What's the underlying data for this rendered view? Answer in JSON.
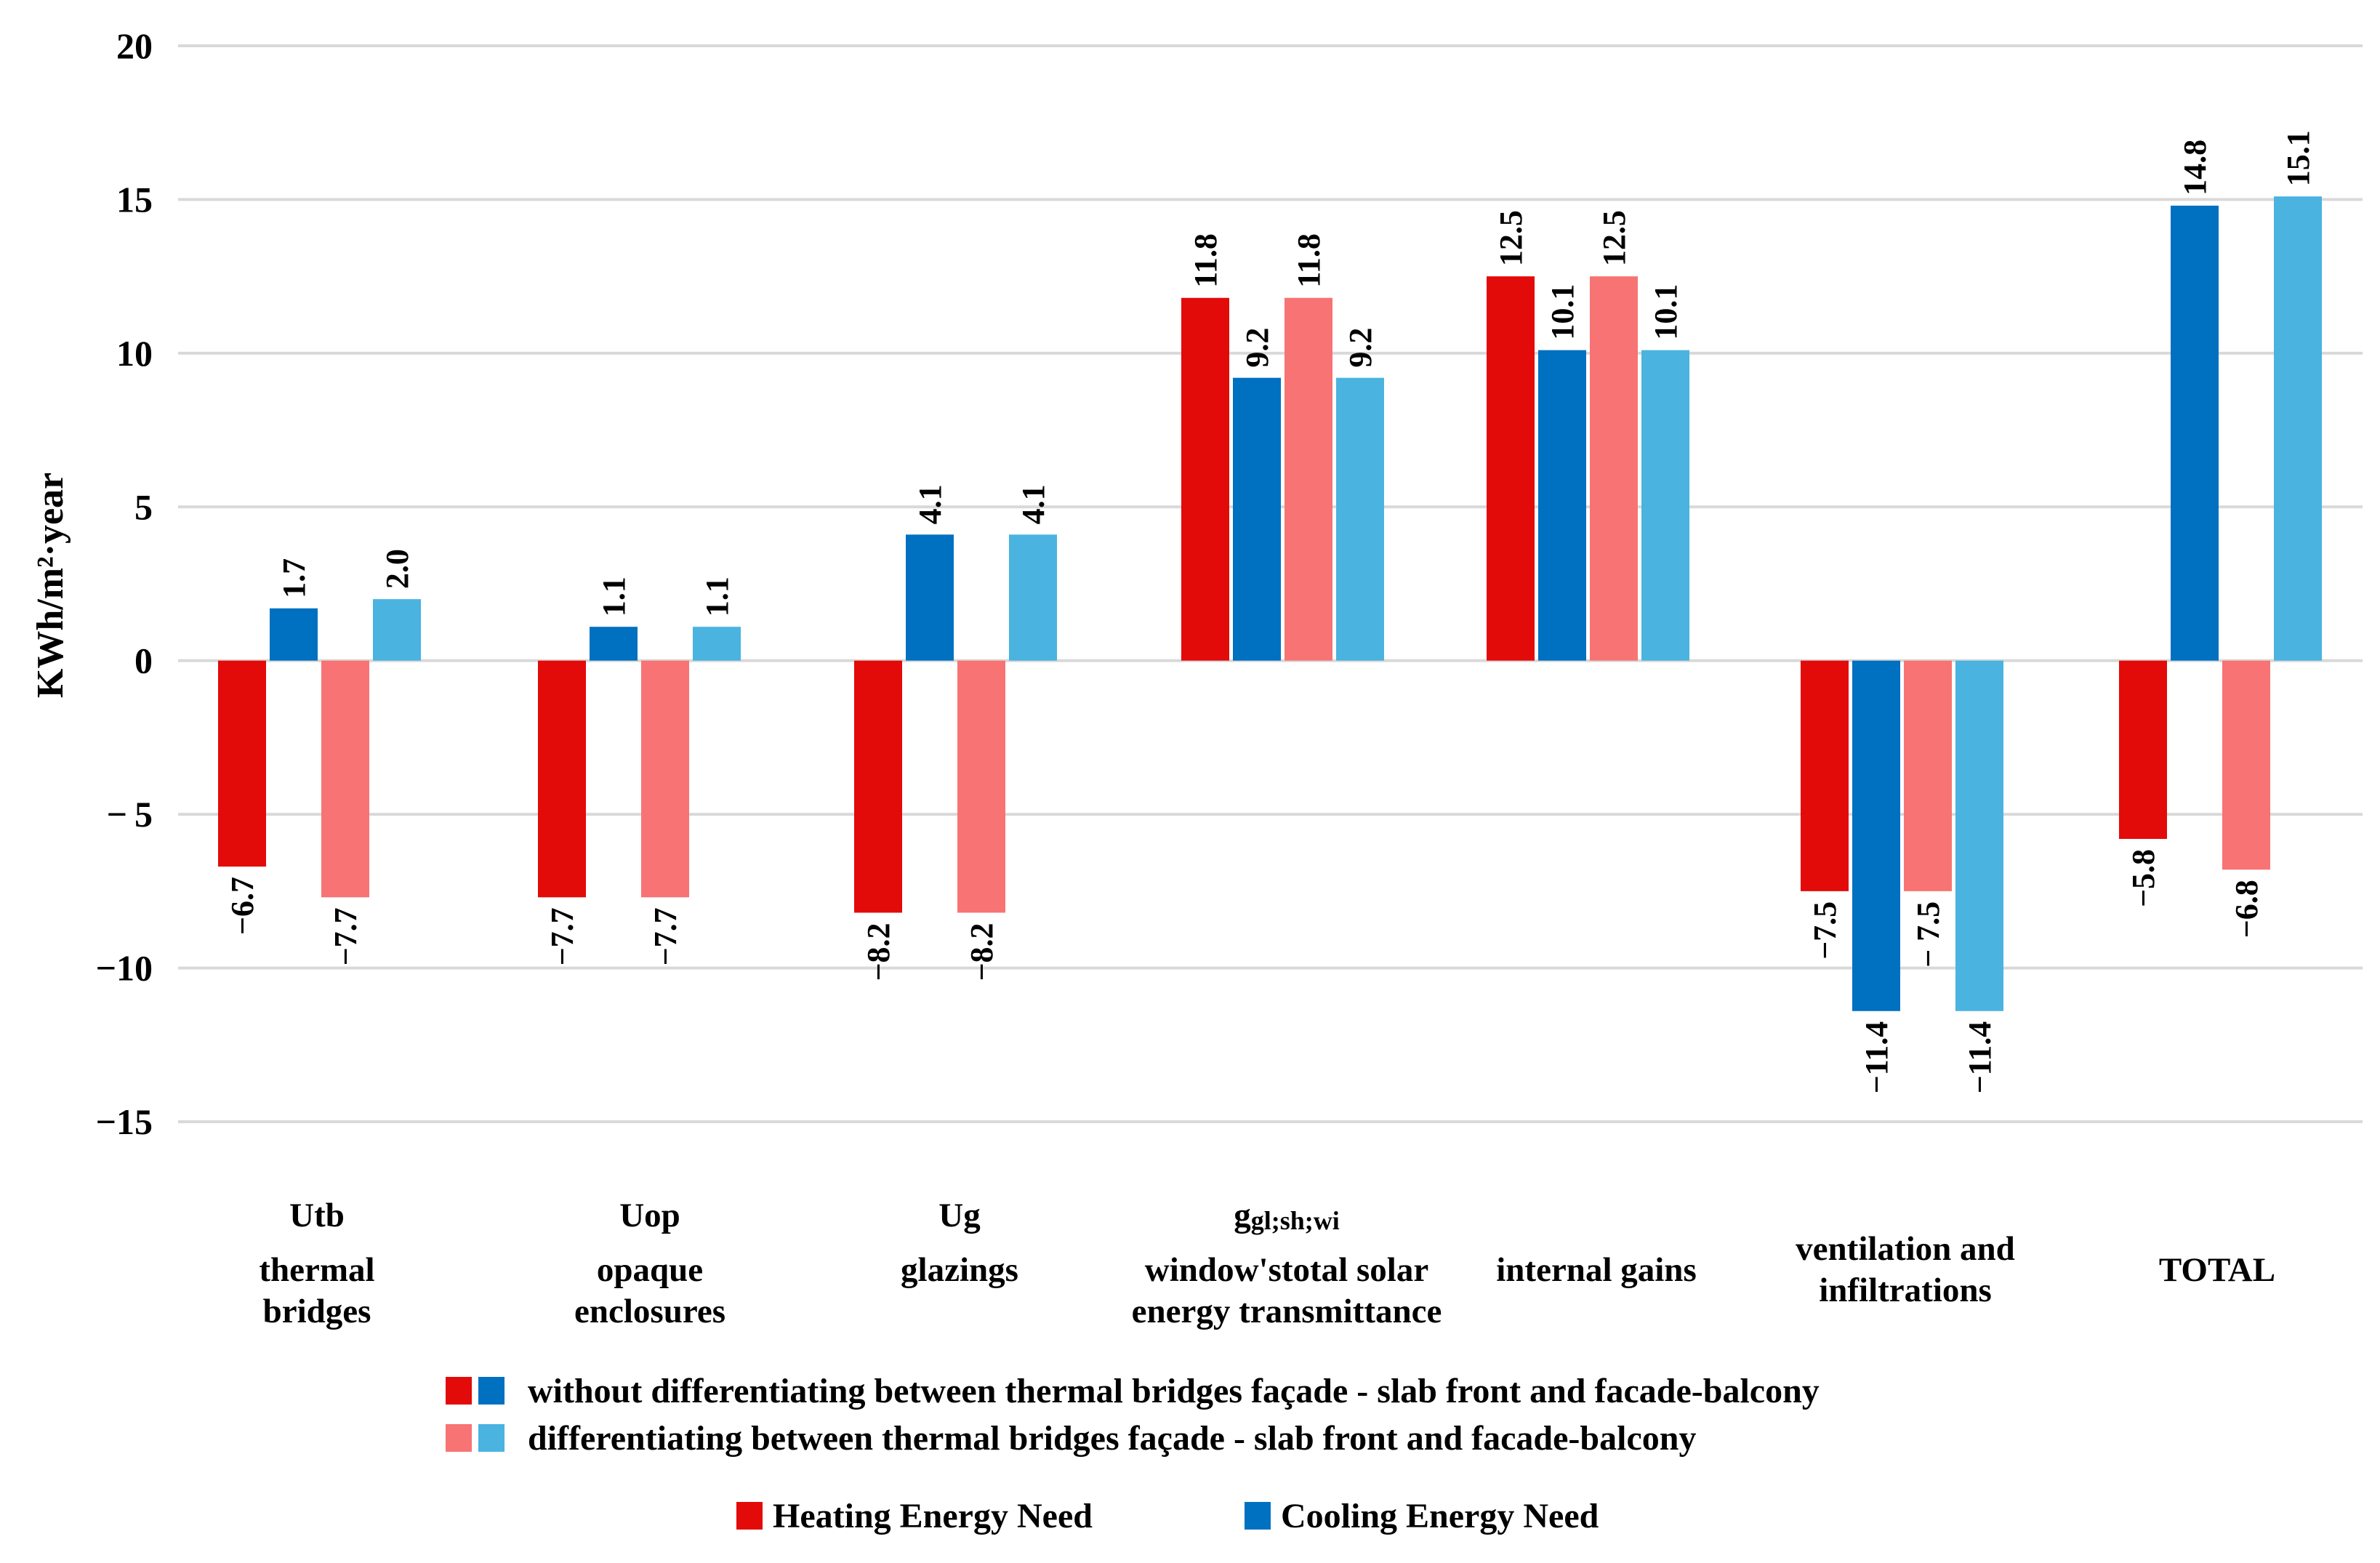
{
  "chart_data": {
    "type": "bar",
    "ylabel": "KWh/m²·year",
    "ylim": [
      -15,
      20
    ],
    "yticks": [
      20,
      15,
      10,
      5,
      0,
      -5,
      -10,
      -15
    ],
    "ytick_labels": [
      "20",
      "15",
      "10",
      "5",
      "0",
      "− 5",
      "−10",
      "−15"
    ],
    "grid": true,
    "categories": [
      {
        "symbol": "Utb",
        "symbol_sub": "",
        "description": [
          "thermal",
          "bridges"
        ]
      },
      {
        "symbol": "Uop",
        "symbol_sub": "",
        "description": [
          "opaque",
          "enclosures"
        ]
      },
      {
        "symbol": "Ug",
        "symbol_sub": "",
        "description": [
          "glazings"
        ]
      },
      {
        "symbol": "g",
        "symbol_sub": "gl;sh;wi",
        "description": [
          "window'stotal solar",
          "energy transmittance"
        ]
      },
      {
        "symbol": "",
        "symbol_sub": "",
        "description": [
          "internal gains"
        ]
      },
      {
        "symbol": "",
        "symbol_sub": "",
        "description": [
          "ventilation and",
          "infiltrations"
        ]
      },
      {
        "symbol": "",
        "symbol_sub": "",
        "description": [
          "TOTAL"
        ]
      }
    ],
    "series": [
      {
        "name": "Heating Energy Need — without differentiating",
        "color": "#e30a0a",
        "values": [
          -6.7,
          -7.7,
          -8.2,
          11.8,
          12.5,
          -7.5,
          -5.8
        ],
        "labels": [
          "−6.7",
          "−7.7",
          "−8.2",
          "11.8",
          "12.5",
          "−7.5",
          "−5.8"
        ]
      },
      {
        "name": "Cooling Energy Need — without differentiating",
        "color": "#0070c0",
        "values": [
          1.7,
          1.1,
          4.1,
          9.2,
          10.1,
          -11.4,
          14.8
        ],
        "labels": [
          "1.7",
          "1.1",
          "4.1",
          "9.2",
          "10.1",
          "−11.4",
          "14.8"
        ]
      },
      {
        "name": "Heating Energy Need — differentiating",
        "color": "#f87373",
        "values": [
          -7.7,
          -7.7,
          -8.2,
          11.8,
          12.5,
          -7.5,
          -6.8
        ],
        "labels": [
          "−7.7",
          "−7.7",
          "−8.2",
          "11.8",
          "12.5",
          "− 7.5",
          "−6.8"
        ]
      },
      {
        "name": "Cooling Energy Need — differentiating",
        "color": "#4ab3e0",
        "values": [
          2.0,
          1.1,
          4.1,
          9.2,
          10.1,
          -11.4,
          15.1
        ],
        "labels": [
          "2.0",
          "1.1",
          "4.1",
          "9.2",
          "10.1",
          "−11.4",
          "15.1"
        ]
      }
    ],
    "legend": {
      "placement": "bottom",
      "rows": [
        {
          "text": "without differentiating between thermal bridges façade - slab front and facade-balcony",
          "colors": [
            "#e30a0a",
            "#0070c0"
          ]
        },
        {
          "text": "differentiating between thermal bridges façade - slab front and facade-balcony",
          "colors": [
            "#f87373",
            "#4ab3e0"
          ]
        }
      ],
      "bottom_items": [
        {
          "text": "Heating Energy Need",
          "color": "#e30a0a"
        },
        {
          "text": "Cooling Energy Need",
          "color": "#0070c0"
        }
      ]
    }
  }
}
